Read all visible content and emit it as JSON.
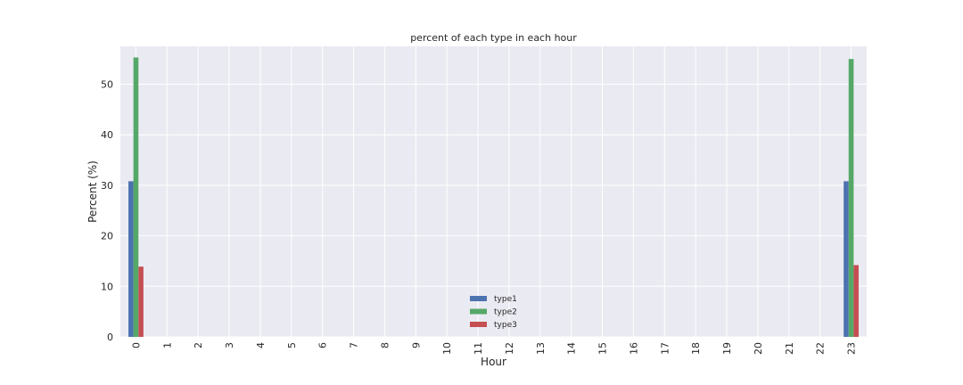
{
  "chart_data": {
    "type": "bar",
    "title": "percent of each type in each hour",
    "xlabel": "Hour",
    "ylabel": "Percent (%)",
    "categories": [
      "0",
      "1",
      "2",
      "3",
      "4",
      "5",
      "6",
      "7",
      "8",
      "9",
      "10",
      "11",
      "12",
      "13",
      "14",
      "15",
      "16",
      "17",
      "18",
      "19",
      "20",
      "21",
      "22",
      "23"
    ],
    "series": [
      {
        "name": "type1",
        "color": "#4c72b0",
        "values": [
          30.8,
          0,
          0,
          0,
          0,
          0,
          0,
          0,
          0,
          0,
          0,
          0,
          0,
          0,
          0,
          0,
          0,
          0,
          0,
          0,
          0,
          0,
          0,
          30.8
        ]
      },
      {
        "name": "type2",
        "color": "#55a868",
        "values": [
          55.3,
          0,
          0,
          0,
          0,
          0,
          0,
          0,
          0,
          0,
          0,
          0,
          0,
          0,
          0,
          0,
          0,
          0,
          0,
          0,
          0,
          0,
          0,
          55.0
        ]
      },
      {
        "name": "type3",
        "color": "#c44e52",
        "values": [
          13.9,
          0,
          0,
          0,
          0,
          0,
          0,
          0,
          0,
          0,
          0,
          0,
          0,
          0,
          0,
          0,
          0,
          0,
          0,
          0,
          0,
          0,
          0,
          14.2
        ]
      }
    ],
    "ylim": [
      0,
      57.5
    ],
    "yticks": [
      0,
      10,
      20,
      30,
      40,
      50
    ],
    "grid": true,
    "background": "#eaeaf2",
    "legend_position": "lower-center"
  }
}
